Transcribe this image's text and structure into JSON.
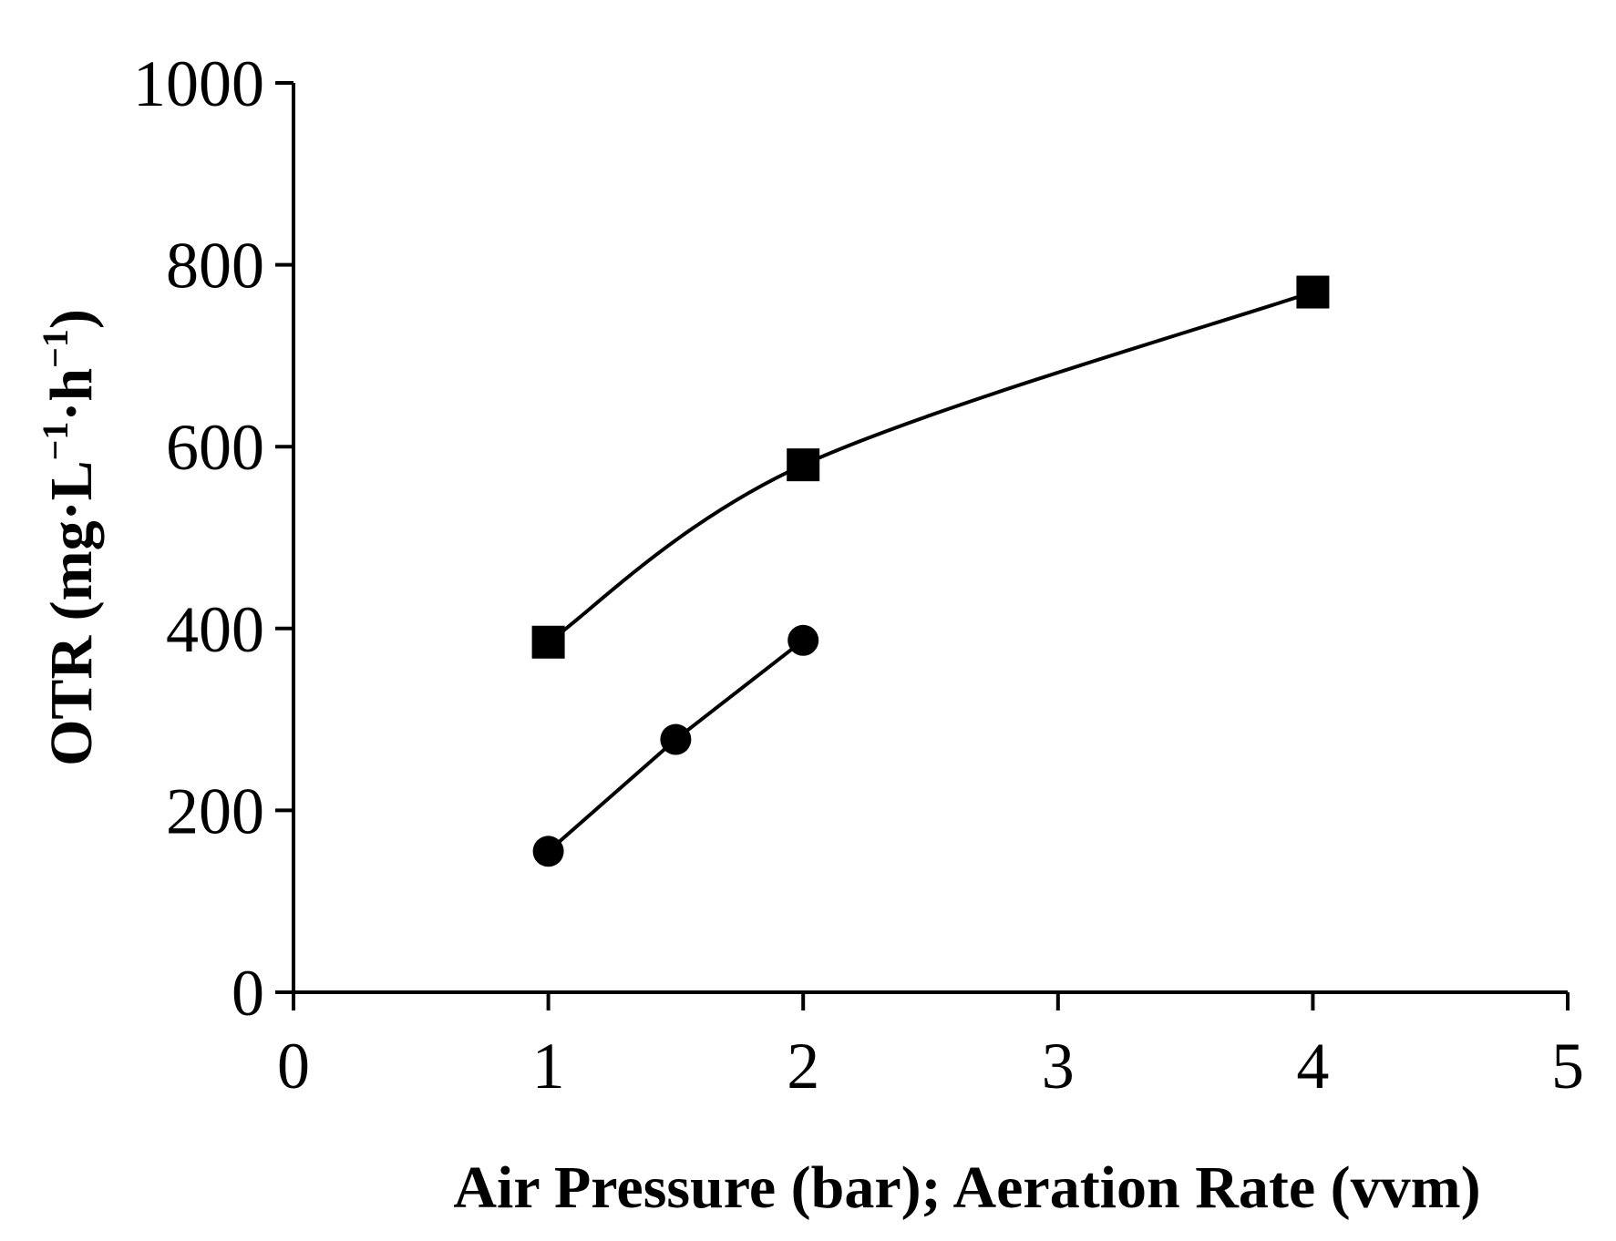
{
  "chart_data": {
    "type": "line",
    "title": "",
    "xlabel": "Air Pressure (bar); Aeration Rate (vvm)",
    "ylabel": {
      "prefix": "OTR (mg·L",
      "sup1": "−1",
      "middle": "·h",
      "sup2": "−1",
      "suffix": ")"
    },
    "xlim": [
      0,
      5
    ],
    "ylim": [
      0,
      1000
    ],
    "x_ticks": [
      0,
      1,
      2,
      3,
      4,
      5
    ],
    "y_ticks": [
      0,
      200,
      400,
      600,
      800,
      1000
    ],
    "grid": false,
    "legend": "none",
    "series": [
      {
        "name": "square-markers",
        "marker": "square",
        "smooth": true,
        "color": "#000000",
        "x": [
          1,
          2,
          4
        ],
        "y": [
          385,
          580,
          770
        ]
      },
      {
        "name": "circle-markers",
        "marker": "circle",
        "smooth": false,
        "color": "#000000",
        "x": [
          1,
          1.5,
          2
        ],
        "y": [
          155,
          278,
          387
        ]
      }
    ]
  }
}
